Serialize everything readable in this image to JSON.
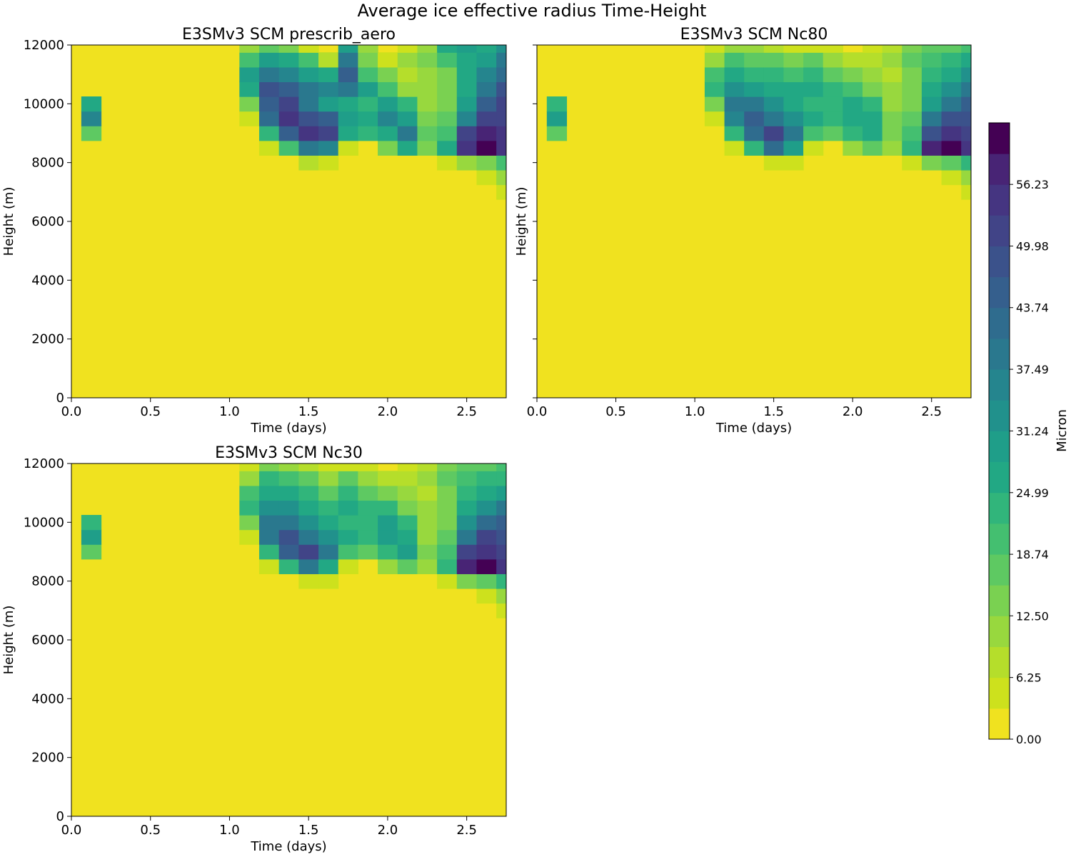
{
  "figure": {
    "title": "Average ice effective radius Time-Height"
  },
  "colorbar": {
    "label": "Micron",
    "tick_labels": [
      "0.00",
      "6.25",
      "12.50",
      "18.74",
      "24.99",
      "31.24",
      "37.49",
      "43.74",
      "49.98",
      "56.23"
    ],
    "tick_values": [
      0.0,
      6.25,
      12.5,
      18.74,
      24.99,
      31.24,
      37.49,
      43.74,
      49.98,
      56.23
    ],
    "levels": [
      0.0,
      3.12,
      6.25,
      9.37,
      12.5,
      15.62,
      18.74,
      21.87,
      24.99,
      28.12,
      31.24,
      34.36,
      37.49,
      40.61,
      43.74,
      46.86,
      49.98,
      53.11,
      56.23,
      59.35
    ],
    "colors": [
      "#f0e21f",
      "#cde11d",
      "#b5de2b",
      "#98d83e",
      "#7ad151",
      "#5ec962",
      "#44bf70",
      "#31b57b",
      "#22a884",
      "#1f9e89",
      "#21918c",
      "#25858e",
      "#2a788e",
      "#2f6c8e",
      "#355f8d",
      "#3b528b",
      "#414487",
      "#453581",
      "#482475",
      "#440154"
    ]
  },
  "chart_data": [
    {
      "type": "heatmap",
      "title": "E3SMv3 SCM prescrib_aero",
      "xlabel": "Time (days)",
      "ylabel": "Height (m)",
      "xlim": [
        0,
        2.75
      ],
      "ylim": [
        0,
        12000
      ],
      "x_ticks": [
        "0.0",
        "0.5",
        "1.0",
        "1.5",
        "2.0",
        "2.5"
      ],
      "y_ticks": [
        "0",
        "2000",
        "4000",
        "6000",
        "8000",
        "10000",
        "12000"
      ],
      "colormap": "viridis_r",
      "x": [
        0.0,
        0.125,
        0.25,
        0.375,
        0.5,
        0.625,
        0.75,
        0.875,
        1.0,
        1.125,
        1.25,
        1.375,
        1.5,
        1.625,
        1.75,
        1.875,
        2.0,
        2.125,
        2.25,
        2.375,
        2.5,
        2.625,
        2.75
      ],
      "y": [
        7000,
        7500,
        8000,
        8500,
        9000,
        9500,
        10000,
        10500,
        11000,
        11500,
        12000
      ],
      "z": [
        [
          0,
          0,
          0,
          0,
          0,
          0,
          0,
          0,
          0,
          0,
          0,
          0,
          0,
          0,
          0,
          0,
          0,
          0,
          0,
          0,
          0,
          0,
          6
        ],
        [
          0,
          0,
          0,
          0,
          0,
          0,
          0,
          0,
          0,
          0,
          0,
          0,
          0,
          0,
          0,
          0,
          0,
          0,
          0,
          0,
          0,
          5,
          12
        ],
        [
          0,
          0,
          0,
          0,
          0,
          0,
          0,
          0,
          0,
          0,
          0,
          0,
          8,
          6,
          0,
          0,
          0,
          0,
          0,
          5,
          12,
          15,
          20
        ],
        [
          0,
          0,
          0,
          0,
          0,
          0,
          0,
          0,
          0,
          0,
          5,
          20,
          40,
          35,
          5,
          0,
          15,
          25,
          15,
          25,
          55,
          60,
          55
        ],
        [
          0,
          18,
          0,
          0,
          0,
          0,
          0,
          0,
          0,
          0,
          22,
          45,
          55,
          50,
          25,
          22,
          28,
          40,
          18,
          20,
          50,
          58,
          55
        ],
        [
          0,
          35,
          0,
          0,
          0,
          0,
          0,
          0,
          0,
          5,
          42,
          55,
          48,
          45,
          30,
          28,
          35,
          30,
          15,
          18,
          35,
          50,
          52
        ],
        [
          0,
          25,
          0,
          0,
          0,
          0,
          0,
          0,
          0,
          15,
          45,
          50,
          40,
          30,
          25,
          24,
          30,
          22,
          12,
          15,
          30,
          45,
          50
        ],
        [
          0,
          0,
          0,
          0,
          0,
          0,
          0,
          0,
          0,
          25,
          48,
          45,
          38,
          35,
          40,
          30,
          20,
          12,
          10,
          15,
          28,
          40,
          48
        ],
        [
          0,
          0,
          0,
          0,
          0,
          0,
          0,
          0,
          0,
          30,
          40,
          35,
          30,
          25,
          45,
          20,
          15,
          8,
          10,
          15,
          25,
          35,
          42
        ],
        [
          0,
          0,
          0,
          0,
          0,
          0,
          0,
          0,
          0,
          20,
          30,
          25,
          20,
          8,
          40,
          15,
          5,
          10,
          15,
          20,
          25,
          30,
          38
        ],
        [
          0,
          0,
          0,
          0,
          0,
          0,
          0,
          0,
          0,
          10,
          18,
          15,
          5,
          0,
          30,
          10,
          0,
          5,
          10,
          25,
          30,
          28,
          32
        ]
      ]
    },
    {
      "type": "heatmap",
      "title": "E3SMv3 SCM Nc80",
      "xlabel": "Time (days)",
      "ylabel": "Height (m)",
      "xlim": [
        0,
        2.75
      ],
      "ylim": [
        0,
        12000
      ],
      "x_ticks": [
        "0.0",
        "0.5",
        "1.0",
        "1.5",
        "2.0",
        "2.5"
      ],
      "y_ticks": [
        "0",
        "2000",
        "4000",
        "6000",
        "8000",
        "10000",
        "12000"
      ],
      "colormap": "viridis_r",
      "x": [
        0.0,
        0.125,
        0.25,
        0.375,
        0.5,
        0.625,
        0.75,
        0.875,
        1.0,
        1.125,
        1.25,
        1.375,
        1.5,
        1.625,
        1.75,
        1.875,
        2.0,
        2.125,
        2.25,
        2.375,
        2.5,
        2.625,
        2.75
      ],
      "y": [
        7000,
        7500,
        8000,
        8500,
        9000,
        9500,
        10000,
        10500,
        11000,
        11500,
        12000
      ],
      "z": [
        [
          0,
          0,
          0,
          0,
          0,
          0,
          0,
          0,
          0,
          0,
          0,
          0,
          0,
          0,
          0,
          0,
          0,
          0,
          0,
          0,
          0,
          0,
          6
        ],
        [
          0,
          0,
          0,
          0,
          0,
          0,
          0,
          0,
          0,
          0,
          0,
          0,
          0,
          0,
          0,
          0,
          0,
          0,
          0,
          0,
          0,
          5,
          12
        ],
        [
          0,
          0,
          0,
          0,
          0,
          0,
          0,
          0,
          0,
          0,
          0,
          0,
          6,
          5,
          0,
          0,
          0,
          0,
          0,
          5,
          14,
          18,
          22
        ],
        [
          0,
          0,
          0,
          0,
          0,
          0,
          0,
          0,
          0,
          0,
          5,
          22,
          42,
          30,
          5,
          0,
          12,
          18,
          10,
          22,
          58,
          60,
          55
        ],
        [
          0,
          16,
          0,
          0,
          0,
          0,
          0,
          0,
          0,
          0,
          22,
          42,
          50,
          40,
          20,
          18,
          22,
          28,
          14,
          20,
          48,
          55,
          52
        ],
        [
          0,
          30,
          0,
          0,
          0,
          0,
          0,
          0,
          0,
          5,
          35,
          45,
          40,
          32,
          25,
          24,
          28,
          25,
          14,
          18,
          38,
          48,
          48
        ],
        [
          0,
          22,
          0,
          0,
          0,
          0,
          0,
          0,
          0,
          15,
          38,
          38,
          32,
          28,
          24,
          22,
          28,
          22,
          12,
          15,
          30,
          40,
          45
        ],
        [
          0,
          0,
          0,
          0,
          0,
          0,
          0,
          0,
          0,
          22,
          32,
          30,
          26,
          25,
          28,
          22,
          20,
          14,
          10,
          14,
          26,
          34,
          40
        ],
        [
          0,
          0,
          0,
          0,
          0,
          0,
          0,
          0,
          0,
          20,
          26,
          24,
          22,
          20,
          22,
          18,
          15,
          10,
          8,
          14,
          22,
          28,
          32
        ],
        [
          0,
          0,
          0,
          0,
          0,
          0,
          0,
          0,
          0,
          12,
          20,
          18,
          16,
          14,
          16,
          12,
          8,
          8,
          10,
          16,
          20,
          22,
          26
        ],
        [
          0,
          0,
          0,
          0,
          0,
          0,
          0,
          0,
          0,
          5,
          12,
          10,
          8,
          4,
          6,
          4,
          0,
          4,
          8,
          14,
          18,
          18,
          20
        ]
      ]
    },
    {
      "type": "heatmap",
      "title": "E3SMv3 SCM Nc30",
      "xlabel": "Time (days)",
      "ylabel": "Height (m)",
      "xlim": [
        0,
        2.75
      ],
      "ylim": [
        0,
        12000
      ],
      "x_ticks": [
        "0.0",
        "0.5",
        "1.0",
        "1.5",
        "2.0",
        "2.5"
      ],
      "y_ticks": [
        "0",
        "2000",
        "4000",
        "6000",
        "8000",
        "10000",
        "12000"
      ],
      "colormap": "viridis_r",
      "x": [
        0.0,
        0.125,
        0.25,
        0.375,
        0.5,
        0.625,
        0.75,
        0.875,
        1.0,
        1.125,
        1.25,
        1.375,
        1.5,
        1.625,
        1.75,
        1.875,
        2.0,
        2.125,
        2.25,
        2.375,
        2.5,
        2.625,
        2.75
      ],
      "y": [
        7000,
        7500,
        8000,
        8500,
        9000,
        9500,
        10000,
        10500,
        11000,
        11500,
        12000
      ],
      "z": [
        [
          0,
          0,
          0,
          0,
          0,
          0,
          0,
          0,
          0,
          0,
          0,
          0,
          0,
          0,
          0,
          0,
          0,
          0,
          0,
          0,
          0,
          0,
          6
        ],
        [
          0,
          0,
          0,
          0,
          0,
          0,
          0,
          0,
          0,
          0,
          0,
          0,
          0,
          0,
          0,
          0,
          0,
          0,
          0,
          0,
          0,
          5,
          12
        ],
        [
          0,
          0,
          0,
          0,
          0,
          0,
          0,
          0,
          0,
          0,
          0,
          0,
          6,
          5,
          0,
          0,
          0,
          0,
          0,
          5,
          14,
          18,
          22
        ],
        [
          0,
          0,
          0,
          0,
          0,
          0,
          0,
          0,
          0,
          0,
          5,
          22,
          40,
          28,
          5,
          0,
          12,
          18,
          10,
          22,
          58,
          60,
          55
        ],
        [
          0,
          16,
          0,
          0,
          0,
          0,
          0,
          0,
          0,
          0,
          22,
          45,
          52,
          38,
          20,
          18,
          24,
          30,
          14,
          20,
          50,
          56,
          52
        ],
        [
          0,
          30,
          0,
          0,
          0,
          0,
          0,
          0,
          0,
          5,
          38,
          48,
          40,
          32,
          25,
          24,
          30,
          25,
          12,
          18,
          40,
          50,
          48
        ],
        [
          0,
          22,
          0,
          0,
          0,
          0,
          0,
          0,
          0,
          15,
          40,
          40,
          32,
          28,
          24,
          22,
          30,
          22,
          10,
          15,
          32,
          42,
          45
        ],
        [
          0,
          0,
          0,
          0,
          0,
          0,
          0,
          0,
          0,
          22,
          34,
          32,
          26,
          24,
          28,
          22,
          22,
          14,
          10,
          14,
          26,
          34,
          38
        ],
        [
          0,
          0,
          0,
          0,
          0,
          0,
          0,
          0,
          0,
          20,
          28,
          26,
          22,
          18,
          22,
          18,
          15,
          10,
          8,
          14,
          22,
          26,
          30
        ],
        [
          0,
          0,
          0,
          0,
          0,
          0,
          0,
          0,
          0,
          12,
          22,
          20,
          16,
          12,
          16,
          12,
          8,
          8,
          10,
          16,
          20,
          22,
          24
        ],
        [
          0,
          0,
          0,
          0,
          0,
          0,
          0,
          0,
          0,
          5,
          14,
          12,
          8,
          4,
          6,
          4,
          0,
          4,
          8,
          14,
          18,
          18,
          20
        ]
      ]
    }
  ]
}
